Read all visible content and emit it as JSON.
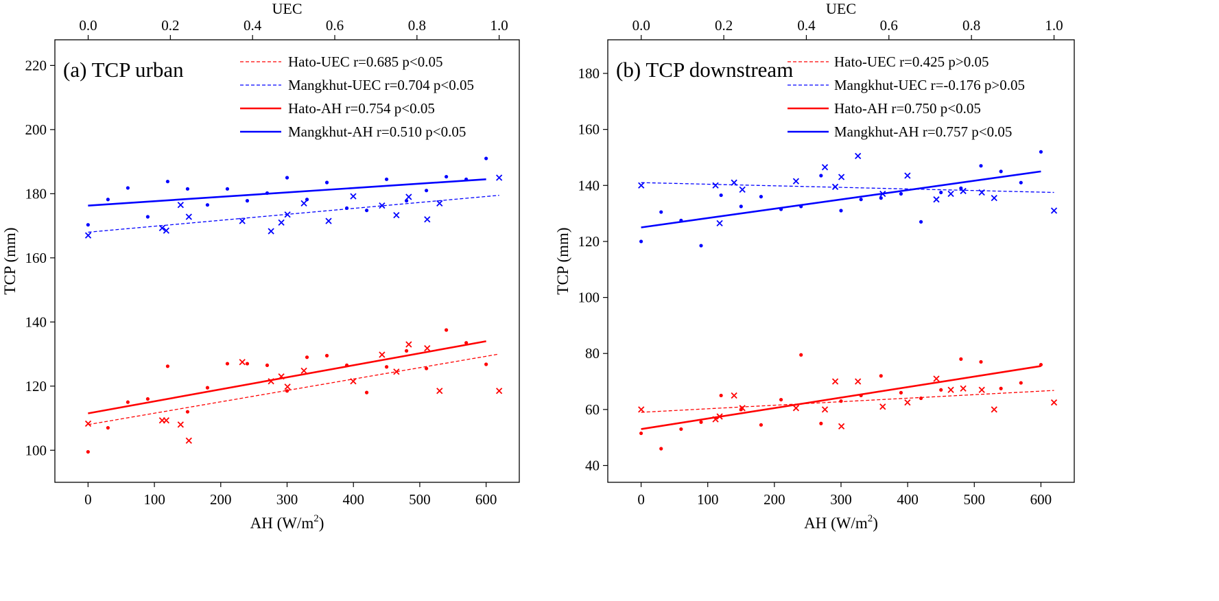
{
  "chart_data": [
    {
      "type": "scatter",
      "panel_title": "(a) TCP urban",
      "xlabel_main": "AH (W/m",
      "xlabel_sup": "2",
      "xlabel_close": ")",
      "ylabel": "TCP (mm)",
      "top_xlabel": "UEC",
      "xlim": [
        -50,
        650
      ],
      "ylim": [
        90,
        228
      ],
      "top_xlim": [
        -0.081,
        1.049
      ],
      "xticks": [
        0,
        100,
        200,
        300,
        400,
        500,
        600
      ],
      "yticks": [
        100,
        120,
        140,
        160,
        180,
        200,
        220
      ],
      "top_xticks": [
        0.0,
        0.2,
        0.4,
        0.6,
        0.8,
        1.0
      ],
      "top_xtick_labels": [
        "0.0",
        "0.2",
        "0.4",
        "0.6",
        "0.8",
        "1.0"
      ],
      "legend_position": "upper-right",
      "colors": {
        "hato": "#ff0000",
        "mangkhut": "#0000ff"
      },
      "series": [
        {
          "name": "Hato-UEC r=0.685 p<0.05",
          "kind": "fit",
          "style": "dashed",
          "color": "#ff0000",
          "axis": "top",
          "x": [
            0.0,
            1.0
          ],
          "y": [
            108,
            130
          ]
        },
        {
          "name": "Mangkhut-UEC r=0.704 p<0.05",
          "kind": "fit",
          "style": "dashed",
          "color": "#0000ff",
          "axis": "top",
          "x": [
            0.0,
            1.0
          ],
          "y": [
            168,
            179.5
          ]
        },
        {
          "name": "Hato-AH r=0.754 p<0.05",
          "kind": "fit",
          "style": "solid",
          "color": "#ff0000",
          "axis": "bottom",
          "x": [
            0,
            600
          ],
          "y": [
            111.5,
            134
          ]
        },
        {
          "name": "Mangkhut-AH r=0.510 p<0.05",
          "kind": "fit",
          "style": "solid",
          "color": "#0000ff",
          "axis": "bottom",
          "x": [
            0,
            600
          ],
          "y": [
            176.3,
            184.5
          ]
        },
        {
          "kind": "points",
          "marker": "dot",
          "color": "#ff0000",
          "axis": "bottom",
          "x": [
            0,
            30,
            60,
            90,
            120,
            150,
            180,
            210,
            240,
            270,
            300,
            330,
            360,
            390,
            420,
            450,
            480,
            510,
            540,
            570,
            600
          ],
          "y": [
            99.5,
            107,
            115,
            116,
            126.2,
            112,
            119.5,
            127,
            127,
            126.5,
            118.5,
            129,
            129.5,
            126.5,
            118,
            126,
            131,
            125.5,
            137.5,
            133.5,
            126.8
          ]
        },
        {
          "kind": "points",
          "marker": "cross",
          "color": "#ff0000",
          "axis": "top",
          "x": [
            0.0,
            0.18,
            0.19,
            0.225,
            0.245,
            0.375,
            0.445,
            0.47,
            0.485,
            0.525,
            0.645,
            0.715,
            0.75,
            0.78,
            0.825,
            0.855,
            1.0
          ],
          "y": [
            108.3,
            109.3,
            109.3,
            108,
            103,
            127.5,
            121.5,
            123,
            119.8,
            124.8,
            121.5,
            129.8,
            124.5,
            133,
            131.8,
            118.5,
            118.5
          ]
        },
        {
          "kind": "points",
          "marker": "dot",
          "color": "#0000ff",
          "axis": "bottom",
          "x": [
            0,
            30,
            60,
            90,
            120,
            150,
            180,
            210,
            240,
            270,
            300,
            330,
            360,
            390,
            420,
            450,
            480,
            510,
            540,
            570,
            600
          ],
          "y": [
            170.3,
            178.2,
            181.8,
            172.8,
            183.8,
            181.5,
            176.5,
            181.5,
            177.8,
            180.2,
            185,
            178.2,
            183.5,
            175.5,
            174.8,
            184.5,
            177.8,
            181,
            185.3,
            184.5,
            191
          ]
        },
        {
          "kind": "points",
          "marker": "cross",
          "color": "#0000ff",
          "axis": "top",
          "x": [
            0.0,
            0.18,
            0.19,
            0.225,
            0.245,
            0.375,
            0.445,
            0.47,
            0.485,
            0.525,
            0.585,
            0.645,
            0.715,
            0.75,
            0.78,
            0.825,
            0.855,
            1.0
          ],
          "y": [
            167,
            169.3,
            168.5,
            176.5,
            172.8,
            171.5,
            168.3,
            171,
            173.5,
            177,
            171.5,
            179.2,
            176.3,
            173.3,
            179,
            172,
            177,
            185
          ]
        }
      ]
    },
    {
      "type": "scatter",
      "panel_title": "(b) TCP downstream",
      "xlabel_main": "AH (W/m",
      "xlabel_sup": "2",
      "xlabel_close": ")",
      "ylabel": "TCP (mm)",
      "top_xlabel": "UEC",
      "xlim": [
        -50,
        650
      ],
      "ylim": [
        34,
        192
      ],
      "top_xlim": [
        -0.081,
        1.049
      ],
      "xticks": [
        0,
        100,
        200,
        300,
        400,
        500,
        600
      ],
      "yticks": [
        40,
        60,
        80,
        100,
        120,
        140,
        160,
        180
      ],
      "top_xticks": [
        0.0,
        0.2,
        0.4,
        0.6,
        0.8,
        1.0
      ],
      "top_xtick_labels": [
        "0.0",
        "0.2",
        "0.4",
        "0.6",
        "0.8",
        "1.0"
      ],
      "legend_position": "upper-right",
      "colors": {
        "hato": "#ff0000",
        "mangkhut": "#0000ff"
      },
      "series": [
        {
          "name": "Hato-UEC r=0.425 p>0.05",
          "kind": "fit",
          "style": "dashed",
          "color": "#ff0000",
          "axis": "top",
          "x": [
            0.0,
            1.0
          ],
          "y": [
            59,
            66.8
          ]
        },
        {
          "name": "Mangkhut-UEC r=-0.176 p>0.05",
          "kind": "fit",
          "style": "dashed",
          "color": "#0000ff",
          "axis": "top",
          "x": [
            0.0,
            1.0
          ],
          "y": [
            141,
            137.5
          ]
        },
        {
          "name": "Hato-AH r=0.750 p<0.05",
          "kind": "fit",
          "style": "solid",
          "color": "#ff0000",
          "axis": "bottom",
          "x": [
            0,
            600
          ],
          "y": [
            53,
            75.5
          ]
        },
        {
          "name": "Mangkhut-AH r=0.757 p<0.05",
          "kind": "fit",
          "style": "solid",
          "color": "#0000ff",
          "axis": "bottom",
          "x": [
            0,
            600
          ],
          "y": [
            125,
            145
          ]
        },
        {
          "kind": "points",
          "marker": "dot",
          "color": "#ff0000",
          "axis": "bottom",
          "x": [
            0,
            30,
            60,
            90,
            120,
            150,
            180,
            210,
            240,
            270,
            300,
            330,
            360,
            390,
            420,
            450,
            480,
            510,
            540,
            570,
            600
          ],
          "y": [
            51.5,
            46,
            53,
            55.5,
            65,
            60,
            54.5,
            63.5,
            79.5,
            55,
            63,
            65,
            72,
            66,
            64,
            67,
            78,
            77,
            67.5,
            69.5,
            76
          ]
        },
        {
          "kind": "points",
          "marker": "cross",
          "color": "#ff0000",
          "axis": "top",
          "x": [
            0.0,
            0.18,
            0.19,
            0.225,
            0.245,
            0.375,
            0.445,
            0.47,
            0.485,
            0.525,
            0.585,
            0.645,
            0.715,
            0.75,
            0.78,
            0.825,
            0.855,
            1.0
          ],
          "y": [
            60,
            56.5,
            57.5,
            65,
            60.5,
            60.5,
            60,
            70,
            54,
            70,
            61,
            62.5,
            71,
            67,
            67.5,
            67,
            60,
            62.5
          ]
        },
        {
          "kind": "points",
          "marker": "dot",
          "color": "#0000ff",
          "axis": "bottom",
          "x": [
            0,
            30,
            60,
            90,
            120,
            150,
            180,
            210,
            240,
            270,
            300,
            330,
            360,
            390,
            420,
            450,
            480,
            510,
            540,
            570,
            600
          ],
          "y": [
            120,
            130.5,
            127.5,
            118.5,
            136.5,
            132.5,
            136,
            131.5,
            132.5,
            143.5,
            131,
            135,
            135.5,
            137,
            127,
            137.5,
            139,
            147,
            145,
            141,
            152
          ]
        },
        {
          "kind": "points",
          "marker": "cross",
          "color": "#0000ff",
          "axis": "top",
          "x": [
            0.0,
            0.18,
            0.19,
            0.225,
            0.245,
            0.375,
            0.445,
            0.47,
            0.485,
            0.525,
            0.585,
            0.645,
            0.715,
            0.75,
            0.78,
            0.825,
            0.855,
            1.0
          ],
          "y": [
            140,
            140,
            126.5,
            141,
            138.5,
            141.5,
            146.5,
            139.5,
            143,
            150.5,
            137,
            143.5,
            135,
            137,
            138,
            137.5,
            135.5,
            131
          ]
        }
      ]
    }
  ]
}
